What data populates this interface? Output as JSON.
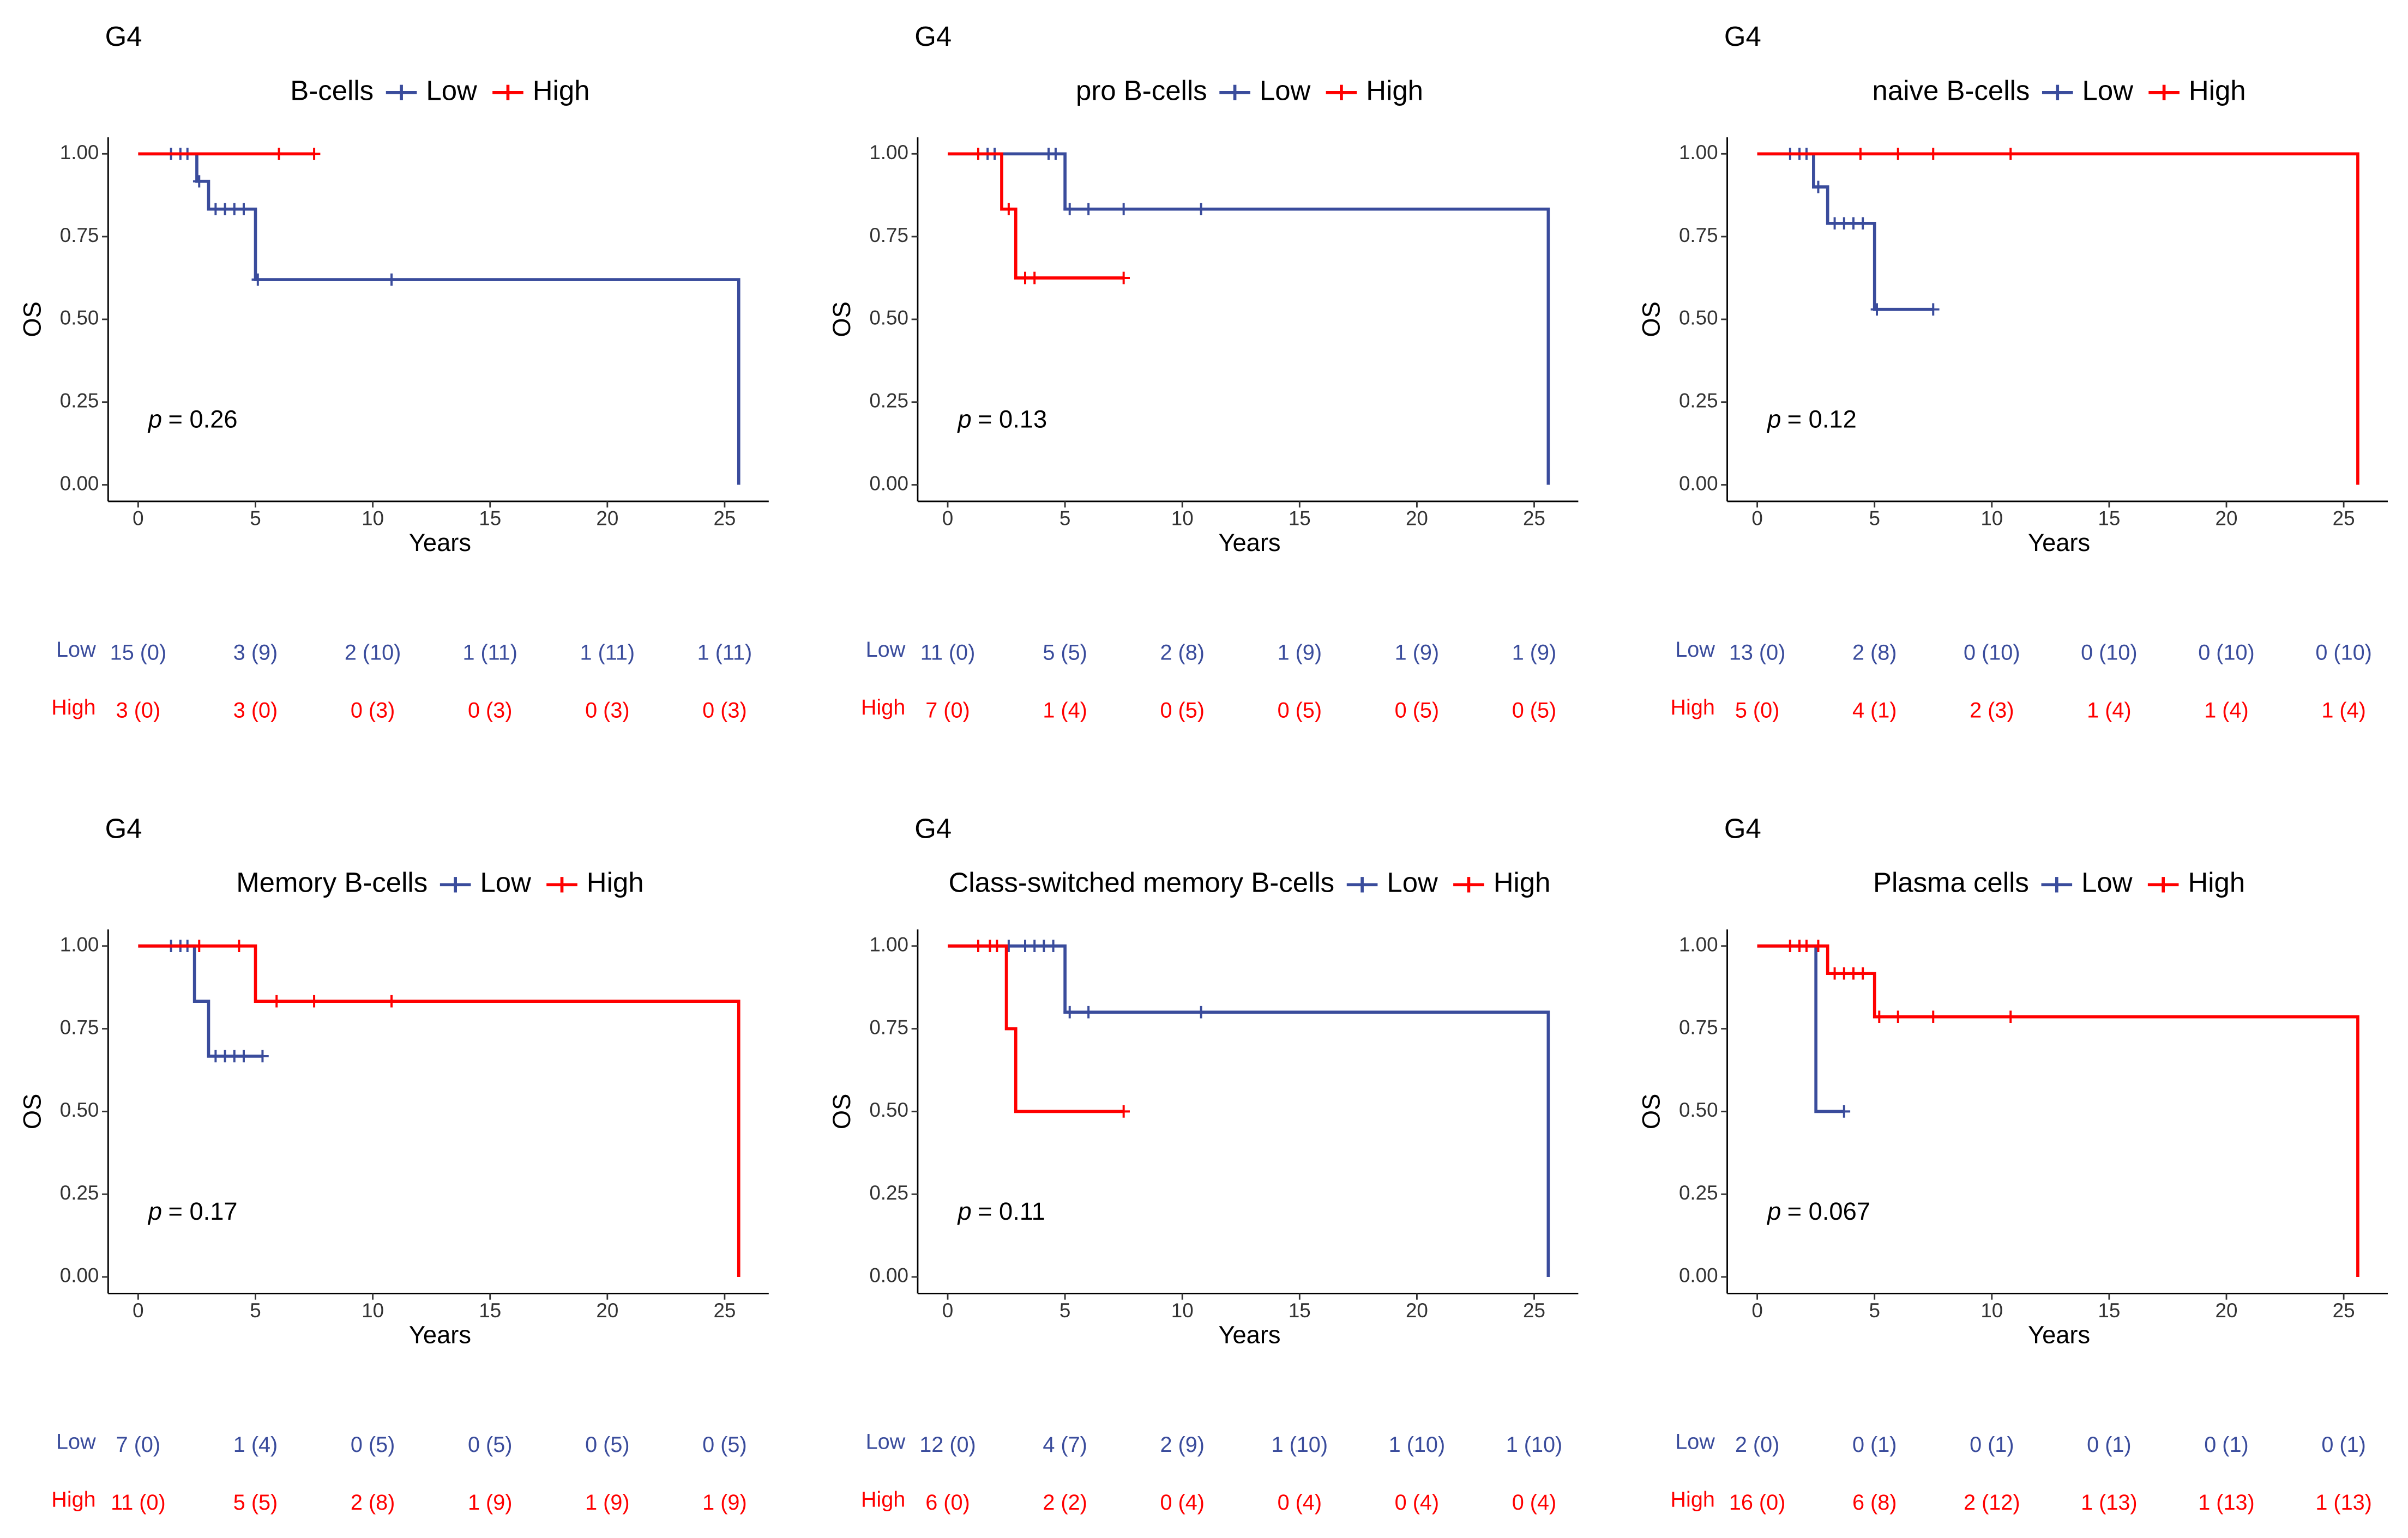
{
  "chart_data": [
    {
      "type": "line",
      "title": "G4",
      "legend_title": "B-cells",
      "xlabel": "Years",
      "ylabel": "OS",
      "xlim": [
        -1.28,
        26.88
      ],
      "ylim": [
        -0.05,
        1.05
      ],
      "xticks": [
        0,
        5,
        10,
        15,
        20,
        25
      ],
      "yticks": [
        {
          "value": 0,
          "label": "0.00"
        },
        {
          "value": 0.25,
          "label": "0.25"
        },
        {
          "value": 0.5,
          "label": "0.50"
        },
        {
          "value": 0.75,
          "label": "0.75"
        },
        {
          "value": 1,
          "label": "1.00"
        }
      ],
      "series": [
        {
          "name": "Low",
          "color": "#3a4c9c",
          "x": [
            0,
            2.5,
            3,
            5,
            25.6
          ],
          "values": [
            1,
            0.917,
            0.833,
            0.62,
            0
          ],
          "censor_x": [
            1.4,
            1.8,
            2.1,
            2.6,
            3.3,
            3.7,
            4.1,
            4.5,
            5.1,
            10.8
          ]
        },
        {
          "name": "High",
          "color": "#ff0000",
          "x": [
            0
          ],
          "values": [
            1
          ],
          "censor_x": [
            6,
            7.5
          ]
        }
      ],
      "pvalue_symbol": "p",
      "pvalue": "= 0.26",
      "risk_table": [
        {
          "name": "Low",
          "color": "#3a4c9c",
          "values": [
            "15 (0)",
            "3 (9)",
            "2 (10)",
            "1 (11)",
            "1 (11)",
            "1 (11)"
          ]
        },
        {
          "name": "High",
          "color": "#ff0000",
          "values": [
            "3 (0)",
            "3 (0)",
            "0 (3)",
            "0 (3)",
            "0 (3)",
            "0 (3)"
          ]
        }
      ]
    },
    {
      "type": "line",
      "title": "G4",
      "legend_title": "pro B-cells",
      "xlabel": "Years",
      "ylabel": "OS",
      "xlim": [
        -1.28,
        26.88
      ],
      "ylim": [
        -0.05,
        1.05
      ],
      "xticks": [
        0,
        5,
        10,
        15,
        20,
        25
      ],
      "yticks": [
        {
          "value": 0,
          "label": "0.00"
        },
        {
          "value": 0.25,
          "label": "0.25"
        },
        {
          "value": 0.5,
          "label": "0.50"
        },
        {
          "value": 0.75,
          "label": "0.75"
        },
        {
          "value": 1,
          "label": "1.00"
        }
      ],
      "series": [
        {
          "name": "Low",
          "color": "#3a4c9c",
          "x": [
            0,
            5,
            25.6
          ],
          "values": [
            1,
            0.833,
            0
          ],
          "censor_x": [
            1.7,
            2.0,
            4.3,
            4.6,
            5.2,
            6,
            7.5,
            10.8
          ]
        },
        {
          "name": "High",
          "color": "#ff0000",
          "x": [
            0,
            2.3,
            2.9
          ],
          "values": [
            1,
            0.833,
            0.625
          ],
          "censor_x": [
            1.3,
            2.6,
            3.3,
            3.7,
            7.5
          ]
        }
      ],
      "pvalue_symbol": "p",
      "pvalue": "= 0.13",
      "risk_table": [
        {
          "name": "Low",
          "color": "#3a4c9c",
          "values": [
            "11 (0)",
            "5 (5)",
            "2 (8)",
            "1 (9)",
            "1 (9)",
            "1 (9)"
          ]
        },
        {
          "name": "High",
          "color": "#ff0000",
          "values": [
            "7 (0)",
            "1 (4)",
            "0 (5)",
            "0 (5)",
            "0 (5)",
            "0 (5)"
          ]
        }
      ]
    },
    {
      "type": "line",
      "title": "G4",
      "legend_title": "naive B-cells",
      "xlabel": "Years",
      "ylabel": "OS",
      "xlim": [
        -1.28,
        26.88
      ],
      "ylim": [
        -0.05,
        1.05
      ],
      "xticks": [
        0,
        5,
        10,
        15,
        20,
        25
      ],
      "yticks": [
        {
          "value": 0,
          "label": "0.00"
        },
        {
          "value": 0.25,
          "label": "0.25"
        },
        {
          "value": 0.5,
          "label": "0.50"
        },
        {
          "value": 0.75,
          "label": "0.75"
        },
        {
          "value": 1,
          "label": "1.00"
        }
      ],
      "series": [
        {
          "name": "Low",
          "color": "#3a4c9c",
          "x": [
            0,
            2.4,
            3,
            5
          ],
          "values": [
            1,
            0.9,
            0.79,
            0.53
          ],
          "censor_x": [
            1.4,
            1.8,
            2.1,
            2.6,
            3.3,
            3.7,
            4.1,
            4.5,
            5.1,
            7.5
          ]
        },
        {
          "name": "High",
          "color": "#ff0000",
          "x": [
            0,
            25.6
          ],
          "values": [
            1,
            0
          ],
          "censor_x": [
            4.4,
            6,
            7.5,
            10.8
          ]
        }
      ],
      "pvalue_symbol": "p",
      "pvalue": "= 0.12",
      "risk_table": [
        {
          "name": "Low",
          "color": "#3a4c9c",
          "values": [
            "13 (0)",
            "2 (8)",
            "0 (10)",
            "0 (10)",
            "0 (10)",
            "0 (10)"
          ]
        },
        {
          "name": "High",
          "color": "#ff0000",
          "values": [
            "5 (0)",
            "4 (1)",
            "2 (3)",
            "1 (4)",
            "1 (4)",
            "1 (4)"
          ]
        }
      ]
    },
    {
      "type": "line",
      "title": "G4",
      "legend_title": "Memory B-cells",
      "xlabel": "Years",
      "ylabel": "OS",
      "xlim": [
        -1.28,
        26.88
      ],
      "ylim": [
        -0.05,
        1.05
      ],
      "xticks": [
        0,
        5,
        10,
        15,
        20,
        25
      ],
      "yticks": [
        {
          "value": 0,
          "label": "0.00"
        },
        {
          "value": 0.25,
          "label": "0.25"
        },
        {
          "value": 0.5,
          "label": "0.50"
        },
        {
          "value": 0.75,
          "label": "0.75"
        },
        {
          "value": 1,
          "label": "1.00"
        }
      ],
      "series": [
        {
          "name": "Low",
          "color": "#3a4c9c",
          "x": [
            0,
            2.4,
            3
          ],
          "values": [
            1,
            0.833,
            0.667
          ],
          "censor_x": [
            1.4,
            1.8,
            2.1,
            3.3,
            3.7,
            4.1,
            4.5,
            5.3
          ]
        },
        {
          "name": "High",
          "color": "#ff0000",
          "x": [
            0,
            5,
            25.6
          ],
          "values": [
            1,
            0.833,
            0
          ],
          "censor_x": [
            2.6,
            4.3,
            5.9,
            7.5,
            10.8
          ]
        }
      ],
      "pvalue_symbol": "p",
      "pvalue": "= 0.17",
      "risk_table": [
        {
          "name": "Low",
          "color": "#3a4c9c",
          "values": [
            "7 (0)",
            "1 (4)",
            "0 (5)",
            "0 (5)",
            "0 (5)",
            "0 (5)"
          ]
        },
        {
          "name": "High",
          "color": "#ff0000",
          "values": [
            "11 (0)",
            "5 (5)",
            "2 (8)",
            "1 (9)",
            "1 (9)",
            "1 (9)"
          ]
        }
      ]
    },
    {
      "type": "line",
      "title": "G4",
      "legend_title": "Class-switched memory B-cells",
      "xlabel": "Years",
      "ylabel": "OS",
      "xlim": [
        -1.28,
        26.88
      ],
      "ylim": [
        -0.05,
        1.05
      ],
      "xticks": [
        0,
        5,
        10,
        15,
        20,
        25
      ],
      "yticks": [
        {
          "value": 0,
          "label": "0.00"
        },
        {
          "value": 0.25,
          "label": "0.25"
        },
        {
          "value": 0.5,
          "label": "0.50"
        },
        {
          "value": 0.75,
          "label": "0.75"
        },
        {
          "value": 1,
          "label": "1.00"
        }
      ],
      "series": [
        {
          "name": "Low",
          "color": "#3a4c9c",
          "x": [
            0,
            5,
            25.6
          ],
          "values": [
            1,
            0.8,
            0
          ],
          "censor_x": [
            2.6,
            3.3,
            3.7,
            4.1,
            4.5,
            5.2,
            6,
            10.8
          ]
        },
        {
          "name": "High",
          "color": "#ff0000",
          "x": [
            0,
            2.5,
            2.9
          ],
          "values": [
            1,
            0.75,
            0.5
          ],
          "censor_x": [
            1.3,
            1.8,
            2.1,
            7.5
          ]
        }
      ],
      "pvalue_symbol": "p",
      "pvalue": "= 0.11",
      "risk_table": [
        {
          "name": "Low",
          "color": "#3a4c9c",
          "values": [
            "12 (0)",
            "4 (7)",
            "2 (9)",
            "1 (10)",
            "1 (10)",
            "1 (10)"
          ]
        },
        {
          "name": "High",
          "color": "#ff0000",
          "values": [
            "6 (0)",
            "2 (2)",
            "0 (4)",
            "0 (4)",
            "0 (4)",
            "0 (4)"
          ]
        }
      ]
    },
    {
      "type": "line",
      "title": "G4",
      "legend_title": "Plasma cells",
      "xlabel": "Years",
      "ylabel": "OS",
      "xlim": [
        -1.28,
        26.88
      ],
      "ylim": [
        -0.05,
        1.05
      ],
      "xticks": [
        0,
        5,
        10,
        15,
        20,
        25
      ],
      "yticks": [
        {
          "value": 0,
          "label": "0.00"
        },
        {
          "value": 0.25,
          "label": "0.25"
        },
        {
          "value": 0.5,
          "label": "0.50"
        },
        {
          "value": 0.75,
          "label": "0.75"
        },
        {
          "value": 1,
          "label": "1.00"
        }
      ],
      "series": [
        {
          "name": "Low",
          "color": "#3a4c9c",
          "x": [
            0,
            2.5
          ],
          "values": [
            1,
            0.5
          ],
          "censor_x": [
            1.4,
            1.8,
            3.7
          ]
        },
        {
          "name": "High",
          "color": "#ff0000",
          "x": [
            0,
            3,
            5,
            25.6
          ],
          "values": [
            1,
            0.917,
            0.786,
            0
          ],
          "censor_x": [
            1.4,
            1.8,
            2.1,
            2.6,
            3.3,
            3.7,
            4.1,
            4.5,
            5.2,
            6,
            7.5,
            10.8
          ]
        }
      ],
      "pvalue_symbol": "p",
      "pvalue": "= 0.067",
      "risk_table": [
        {
          "name": "Low",
          "color": "#3a4c9c",
          "values": [
            "2 (0)",
            "0 (1)",
            "0 (1)",
            "0 (1)",
            "0 (1)",
            "0 (1)"
          ]
        },
        {
          "name": "High",
          "color": "#ff0000",
          "values": [
            "16 (0)",
            "6 (8)",
            "2 (12)",
            "1 (13)",
            "1 (13)",
            "1 (13)"
          ]
        }
      ]
    }
  ]
}
